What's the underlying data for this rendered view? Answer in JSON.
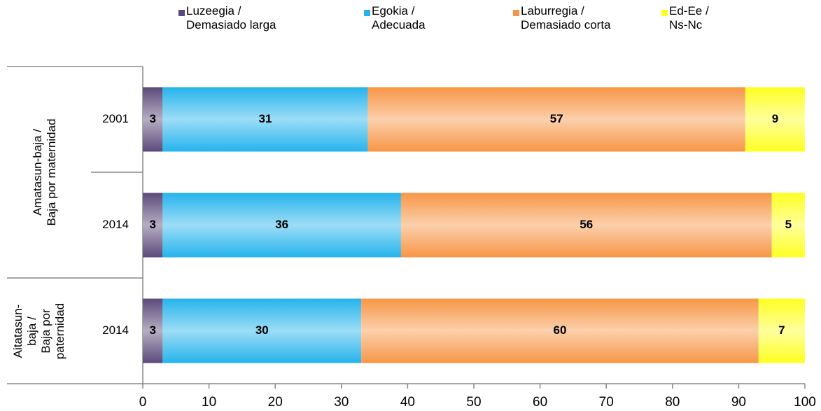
{
  "chart_data": {
    "type": "stacked-bar-horizontal",
    "groups": [
      {
        "label": "Amatasun-baja /\nBaja por maternidad",
        "categories": [
          "2001",
          "2014"
        ]
      },
      {
        "label": "Aitatasun-\nbaja /\nBaja por\npaternidad",
        "categories": [
          "2014"
        ]
      }
    ],
    "series": [
      {
        "name": "Luzeegia /\nDemasiado larga",
        "color": "#5b4a7a",
        "values": [
          3,
          3,
          3
        ]
      },
      {
        "name": "Egokia /\nAdecuada",
        "color": "#25b3ec",
        "values": [
          31,
          36,
          30
        ]
      },
      {
        "name": "Laburregia /\nDemasiado corta",
        "color": "#f79646",
        "values": [
          57,
          56,
          60
        ]
      },
      {
        "name": "Ed-Ee /\nNs-Nc",
        "color": "#ffff22",
        "values": [
          9,
          5,
          7
        ]
      }
    ],
    "xlim": [
      0,
      100
    ],
    "xticks": [
      0,
      10,
      20,
      30,
      40,
      50,
      60,
      70,
      80,
      90,
      100
    ],
    "legend": "top"
  }
}
